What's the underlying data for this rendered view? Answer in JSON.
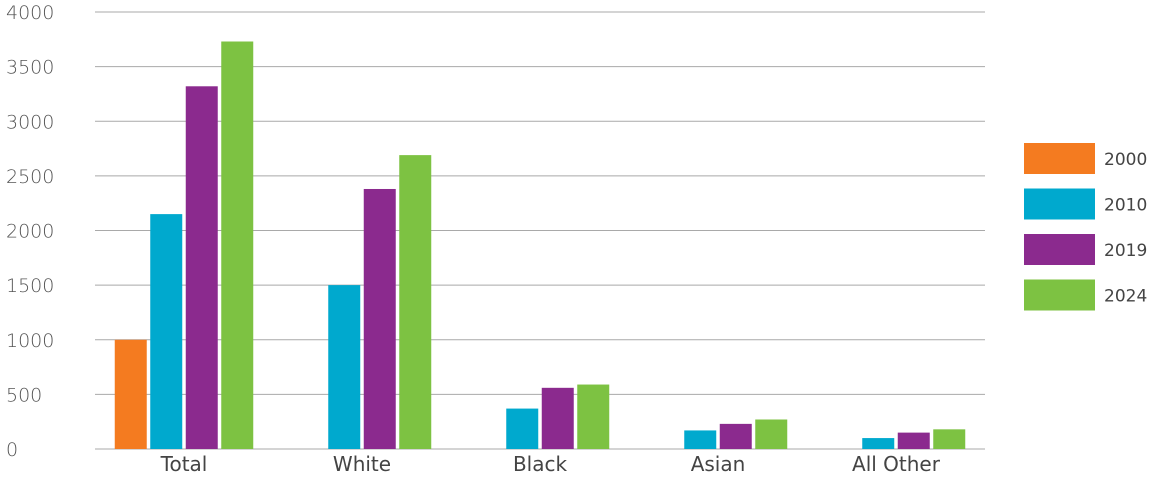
{
  "chart_data": {
    "type": "bar",
    "title": "",
    "xlabel": "",
    "ylabel": "",
    "categories": [
      "Total",
      "White",
      "Black",
      "Asian",
      "All Other"
    ],
    "series": [
      {
        "name": "2000",
        "color": "#F47B20",
        "values": [
          1000,
          null,
          null,
          null,
          null
        ]
      },
      {
        "name": "2010",
        "color": "#00A9CE",
        "values": [
          2150,
          1500,
          370,
          170,
          100
        ]
      },
      {
        "name": "2019",
        "color": "#8B2A8E",
        "values": [
          3320,
          2380,
          560,
          230,
          150
        ]
      },
      {
        "name": "2024",
        "color": "#7DC242",
        "values": [
          3730,
          2690,
          590,
          270,
          180
        ]
      }
    ],
    "ylim": [
      0,
      4000
    ],
    "yticks": [
      0,
      500,
      1000,
      1500,
      2000,
      2500,
      3000,
      3500,
      4000
    ],
    "grid": true,
    "legend_position": "right"
  }
}
